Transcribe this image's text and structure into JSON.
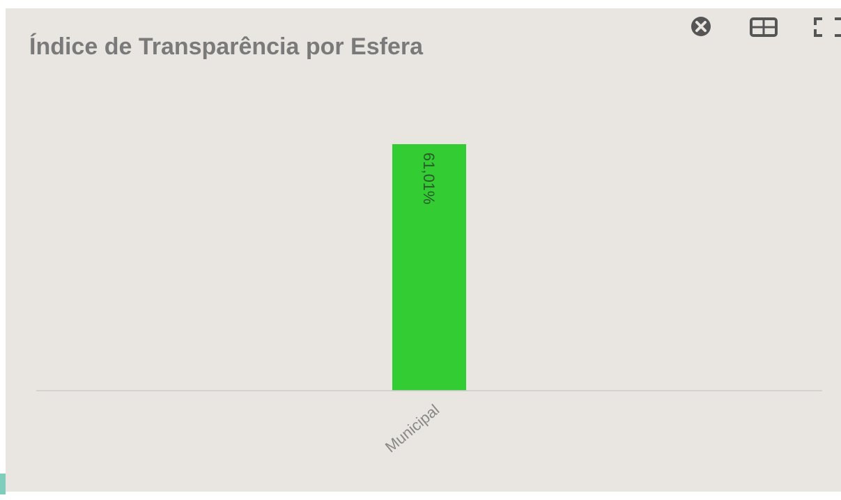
{
  "chart_data": {
    "type": "bar",
    "title": "Índice de Transparência por Esfera",
    "categories": [
      "Municipal"
    ],
    "values": [
      61.01
    ],
    "value_labels": [
      "61,01%"
    ],
    "color": "#33cc33",
    "ylim": [
      0,
      76
    ]
  }
}
